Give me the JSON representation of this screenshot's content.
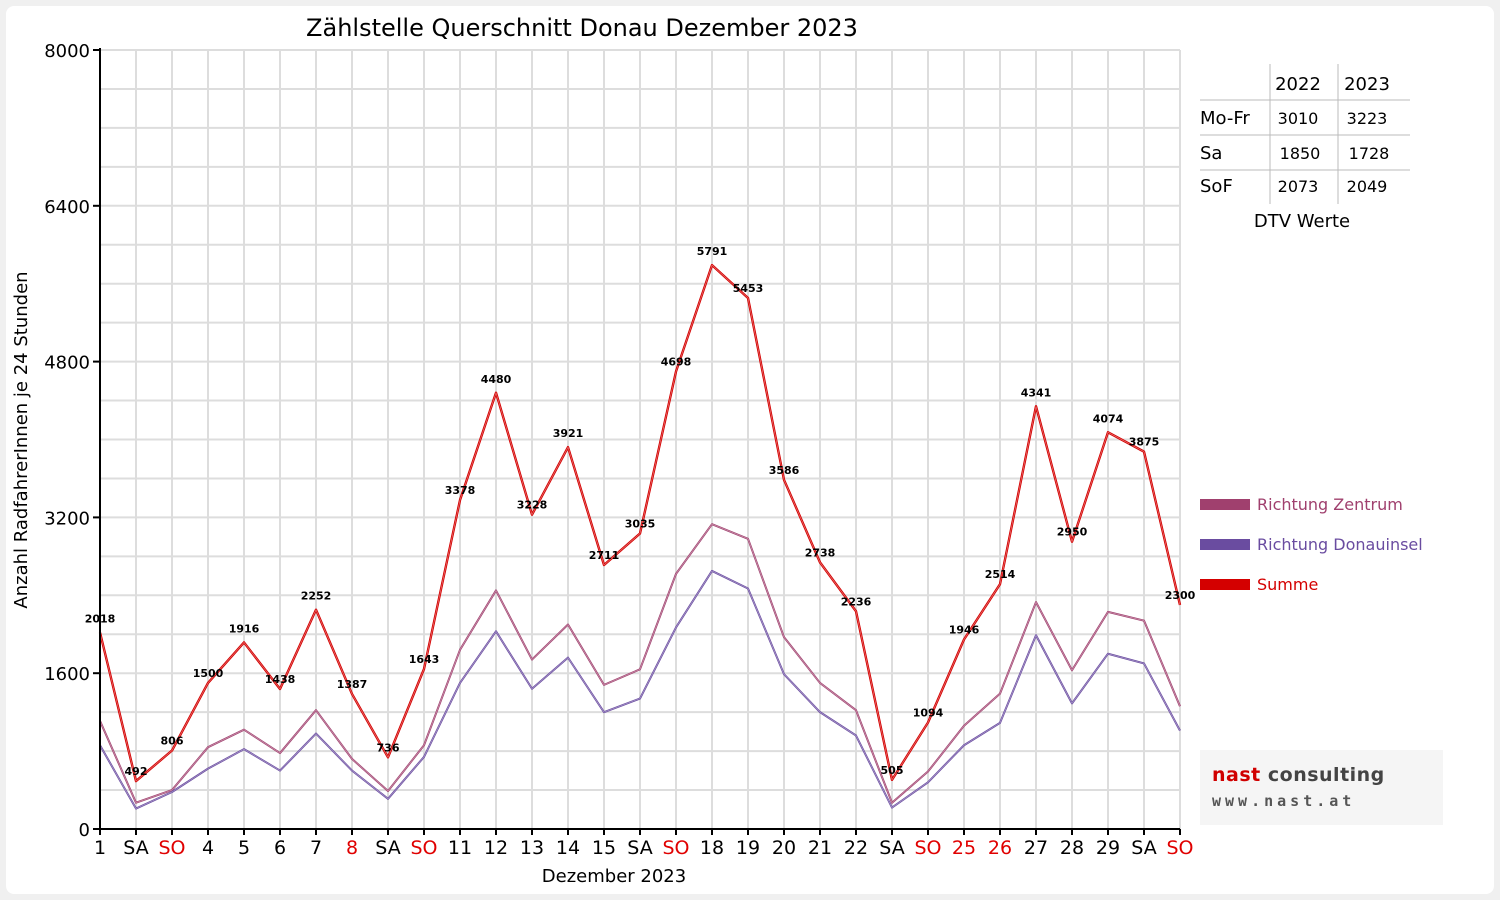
{
  "chart_data": {
    "type": "line",
    "title": "Zählstelle Querschnitt Donau Dezember 2023",
    "xlabel": "Dezember 2023",
    "ylabel": "Anzahl RadfahrerInnen je 24 Stunden",
    "ylim": [
      0,
      8000
    ],
    "yticks": [
      "0",
      "1600",
      "3200",
      "4800",
      "6400",
      "8000"
    ],
    "categories": [
      "1",
      "SA",
      "SO",
      "4",
      "5",
      "6",
      "7",
      "8",
      "SA",
      "SO",
      "11",
      "12",
      "13",
      "14",
      "15",
      "SA",
      "SO",
      "18",
      "19",
      "20",
      "21",
      "22",
      "SA",
      "SO",
      "25",
      "26",
      "27",
      "28",
      "29",
      "SA",
      "SO"
    ],
    "category_colors": [
      "#000000",
      "#000000",
      "#e00000",
      "#000000",
      "#000000",
      "#000000",
      "#000000",
      "#e00000",
      "#000000",
      "#e00000",
      "#000000",
      "#000000",
      "#000000",
      "#000000",
      "#000000",
      "#000000",
      "#e00000",
      "#000000",
      "#000000",
      "#000000",
      "#000000",
      "#000000",
      "#000000",
      "#e00000",
      "#e00000",
      "#e00000",
      "#000000",
      "#000000",
      "#000000",
      "#000000",
      "#e00000"
    ],
    "series": [
      {
        "name": "Richtung Zentrum",
        "color": "#a0406e",
        "values": [
          1110,
          270,
          400,
          840,
          1020,
          780,
          1220,
          720,
          390,
          860,
          1840,
          2450,
          1740,
          2100,
          1480,
          1640,
          2620,
          3130,
          2980,
          1970,
          1500,
          1220,
          270,
          590,
          1060,
          1390,
          2330,
          1630,
          2230,
          2140,
          1260
        ]
      },
      {
        "name": "Richtung Donauinsel",
        "color": "#6a4ca0",
        "values": [
          860,
          210,
          380,
          620,
          820,
          600,
          980,
          600,
          310,
          740,
          1500,
          2030,
          1440,
          1760,
          1200,
          1340,
          2070,
          2650,
          2470,
          1590,
          1200,
          960,
          220,
          480,
          860,
          1090,
          1990,
          1290,
          1800,
          1700,
          1010
        ]
      },
      {
        "name": "Summe",
        "color": "#d40000",
        "values": [
          2018,
          492,
          806,
          1500,
          1916,
          1438,
          2252,
          1387,
          736,
          1643,
          3378,
          4480,
          3228,
          3921,
          2711,
          3035,
          4698,
          5791,
          5453,
          3586,
          2738,
          2236,
          505,
          1094,
          1946,
          2514,
          4341,
          2950,
          4074,
          3875,
          2300
        ]
      }
    ],
    "data_labels": [
      "2018",
      "492",
      "806",
      "1500",
      "1916",
      "1438",
      "2252",
      "1387",
      "736",
      "1643",
      "3378",
      "4480",
      "3228",
      "3921",
      "2711",
      "3035",
      "4698",
      "5791",
      "5453",
      "3586",
      "2738",
      "2236",
      "505",
      "1094",
      "1946",
      "2514",
      "4341",
      "2950",
      "4074",
      "3875",
      "2300"
    ],
    "grid": true,
    "legend_position": "right"
  },
  "dtv_table": {
    "headers": [
      "2022",
      "2023"
    ],
    "rows": [
      {
        "label": "Mo-Fr",
        "v2022": "3010",
        "v2023": "3223"
      },
      {
        "label": "Sa",
        "v2022": "1850",
        "v2023": "1728"
      },
      {
        "label": "SoF",
        "v2022": "2073",
        "v2023": "2049"
      }
    ],
    "caption": "DTV Werte"
  },
  "logo": {
    "name_part1": "nast",
    "name_part2": "consulting",
    "url": "www.nast.at",
    "colors": {
      "accent": "#d00000",
      "dark": "#444444"
    }
  }
}
